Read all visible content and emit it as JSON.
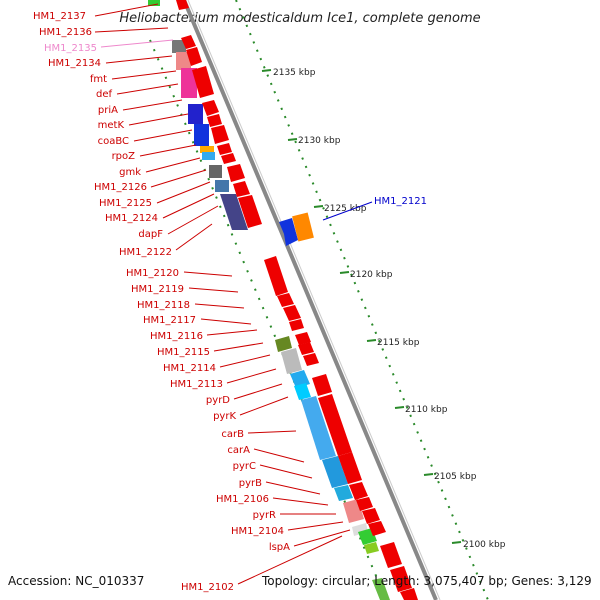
{
  "title": "Heliobacterium modesticaldum Ice1, complete genome",
  "footer": {
    "accession": "Accession: NC_010337",
    "topology": "Topology: circular; Length: 3,075,407 bp; Genes: 3,129"
  },
  "colors": {
    "label": "#cc0000",
    "label_highlight": "#0000cc",
    "label_faded": "#ee88cc",
    "tick": "#2a8a2a",
    "backbone": "#888888"
  },
  "ruler_ticks": [
    "2135 kbp",
    "2130 kbp",
    "2125 kbp",
    "2120 kbp",
    "2115 kbp",
    "2110 kbp",
    "2105 kbp",
    "2100 kbp"
  ],
  "gene_labels": [
    {
      "text": "HM1_2137",
      "color": "#cc0000"
    },
    {
      "text": "HM1_2136",
      "color": "#cc0000"
    },
    {
      "text": "HM1_2135",
      "color": "#ee88cc"
    },
    {
      "text": "HM1_2134",
      "color": "#cc0000"
    },
    {
      "text": "fmt",
      "color": "#cc0000"
    },
    {
      "text": "def",
      "color": "#cc0000"
    },
    {
      "text": "priA",
      "color": "#cc0000"
    },
    {
      "text": "metK",
      "color": "#cc0000"
    },
    {
      "text": "coaBC",
      "color": "#cc0000"
    },
    {
      "text": "rpoZ",
      "color": "#cc0000"
    },
    {
      "text": "gmk",
      "color": "#cc0000"
    },
    {
      "text": "HM1_2126",
      "color": "#cc0000"
    },
    {
      "text": "HM1_2125",
      "color": "#cc0000"
    },
    {
      "text": "HM1_2124",
      "color": "#cc0000"
    },
    {
      "text": "dapF",
      "color": "#cc0000"
    },
    {
      "text": "HM1_2122",
      "color": "#cc0000"
    },
    {
      "text": "HM1_2120",
      "color": "#cc0000"
    },
    {
      "text": "HM1_2119",
      "color": "#cc0000"
    },
    {
      "text": "HM1_2118",
      "color": "#cc0000"
    },
    {
      "text": "HM1_2117",
      "color": "#cc0000"
    },
    {
      "text": "HM1_2116",
      "color": "#cc0000"
    },
    {
      "text": "HM1_2115",
      "color": "#cc0000"
    },
    {
      "text": "HM1_2114",
      "color": "#cc0000"
    },
    {
      "text": "HM1_2113",
      "color": "#cc0000"
    },
    {
      "text": "pyrD",
      "color": "#cc0000"
    },
    {
      "text": "pyrK",
      "color": "#cc0000"
    },
    {
      "text": "carB",
      "color": "#cc0000"
    },
    {
      "text": "carA",
      "color": "#cc0000"
    },
    {
      "text": "pyrC",
      "color": "#cc0000"
    },
    {
      "text": "pyrB",
      "color": "#cc0000"
    },
    {
      "text": "HM1_2106",
      "color": "#cc0000"
    },
    {
      "text": "pyrR",
      "color": "#cc0000"
    },
    {
      "text": "HM1_2104",
      "color": "#cc0000"
    },
    {
      "text": "lspA",
      "color": "#cc0000"
    },
    {
      "text": "HM1_2102",
      "color": "#cc0000"
    },
    {
      "text": "HM1_2121",
      "color": "#0000cc"
    }
  ]
}
